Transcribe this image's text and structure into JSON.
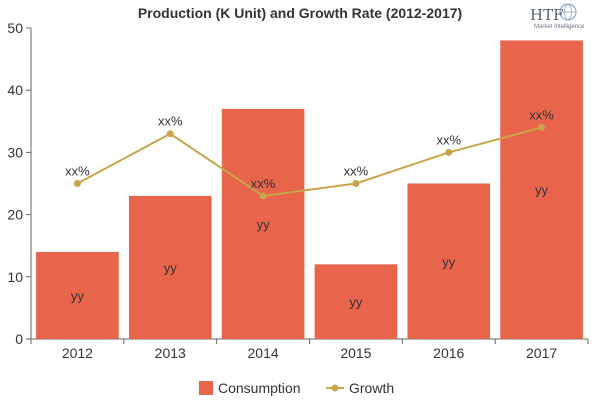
{
  "chart_data": {
    "type": "bar",
    "title": "Production (K Unit) and Growth Rate (2012-2017)",
    "categories": [
      "2012",
      "2013",
      "2014",
      "2015",
      "2016",
      "2017"
    ],
    "ylim": [
      0,
      50
    ],
    "y_ticks": [
      0,
      10,
      20,
      30,
      40,
      50
    ],
    "y2lim": [
      0,
      50
    ],
    "grid": false,
    "legend_position": "bottom-center",
    "series": [
      {
        "name": "Consumption",
        "kind": "bar",
        "color": "#e8654c",
        "values": [
          14,
          23,
          37,
          12,
          25,
          48
        ],
        "data_labels": [
          "yy",
          "yy",
          "yy",
          "yy",
          "yy",
          "yy"
        ]
      },
      {
        "name": "Growth",
        "kind": "line",
        "color": "#c8a44a",
        "values": [
          25,
          33,
          23,
          25,
          30,
          34
        ],
        "data_labels": [
          "xx%",
          "xx%",
          "xx%",
          "xx%",
          "xx%",
          "xx%"
        ]
      }
    ]
  },
  "logo": {
    "text": "HTF",
    "subtext": "Market Intelligence"
  }
}
